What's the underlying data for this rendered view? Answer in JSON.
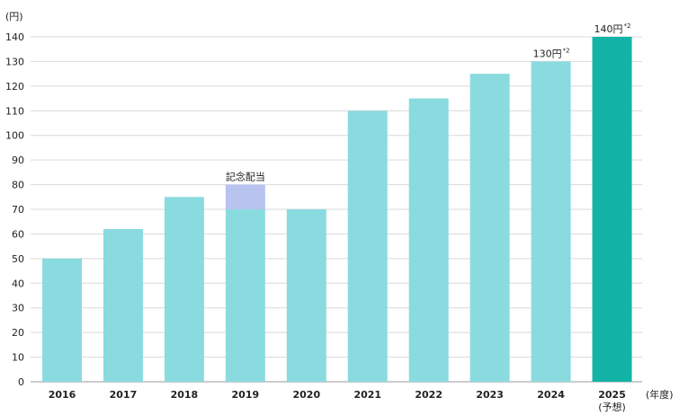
{
  "chart_data": {
    "type": "bar",
    "ylabel": "(円)",
    "xlabel": "(年度)",
    "ylim": [
      0,
      140
    ],
    "yticks": [
      0,
      10,
      20,
      30,
      40,
      50,
      60,
      70,
      80,
      90,
      100,
      110,
      120,
      130,
      140
    ],
    "grid": true,
    "categories": [
      "2016",
      "2017",
      "2018",
      "2019",
      "2020",
      "2021",
      "2022",
      "2023",
      "2024",
      "2025"
    ],
    "category_sublabels": [
      "",
      "",
      "",
      "",
      "",
      "",
      "",
      "",
      "",
      "(予想)"
    ],
    "series": [
      {
        "values": [
          50,
          62,
          75,
          70,
          70,
          110,
          115,
          125,
          130,
          140
        ]
      },
      {
        "values": [
          0,
          0,
          0,
          10,
          0,
          0,
          0,
          0,
          0,
          0
        ]
      }
    ],
    "annotations": [
      {
        "category": "2019",
        "text": "記念配当",
        "sup": ""
      },
      {
        "category": "2024",
        "text": "130円",
        "sup": "*2"
      },
      {
        "category": "2025",
        "text": "140円",
        "sup": "*2"
      }
    ],
    "colors": {
      "bar": "#8adbdf",
      "commemorative": "#b9c3f0",
      "forecast": "#14b3a8",
      "grid": "#d9d9d9",
      "axis": "#9a9a9a"
    }
  }
}
